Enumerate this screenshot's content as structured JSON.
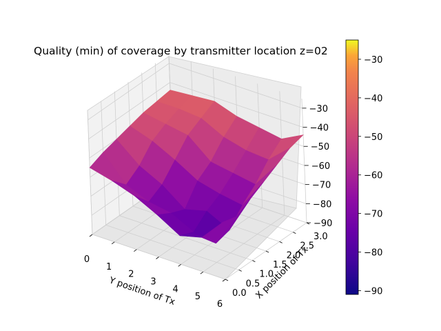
{
  "chart_data": {
    "type": "surface3d",
    "title": "Quality (min) of coverage by transmitter location z=02",
    "xlabel": "Y position of Tx",
    "ylabel": "X position of Tx",
    "zlabel": "",
    "colormap": "plasma",
    "y_ticks": [
      "0",
      "1",
      "2",
      "3",
      "4",
      "5",
      "6"
    ],
    "x_ticks": [
      "0.0",
      "0.5",
      "1.0",
      "1.5",
      "2.0",
      "2.5",
      "3.0"
    ],
    "z_ticks": [
      "−90",
      "−80",
      "−70",
      "−60",
      "−50",
      "−40",
      "−30"
    ],
    "colorbar_ticks": [
      "−90",
      "−80",
      "−70",
      "−60",
      "−50",
      "−40",
      "−30"
    ],
    "y_range": [
      0,
      6
    ],
    "x_range": [
      0,
      3
    ],
    "z_range": [
      -90,
      -25
    ],
    "colorbar_range": [
      -91,
      -25
    ],
    "grid": true,
    "y_values": [
      0,
      1,
      2,
      3,
      4,
      5,
      6
    ],
    "x_values": [
      0.0,
      0.5,
      1.0,
      1.5,
      2.0,
      2.5,
      3.0
    ],
    "z_values": [
      [
        -55,
        -52,
        -50,
        -48,
        -46,
        -45,
        -44
      ],
      [
        -58,
        -65,
        -60,
        -52,
        -48,
        -45,
        -43
      ],
      [
        -62,
        -70,
        -66,
        -58,
        -50,
        -46,
        -42
      ],
      [
        -68,
        -72,
        -75,
        -65,
        -60,
        -52,
        -46
      ],
      [
        -75,
        -78,
        -72,
        -68,
        -62,
        -55,
        -48
      ],
      [
        -72,
        -80,
        -78,
        -70,
        -64,
        -56,
        -50
      ],
      [
        -60,
        -62,
        -58,
        -54,
        -50,
        -46,
        -44
      ]
    ]
  }
}
